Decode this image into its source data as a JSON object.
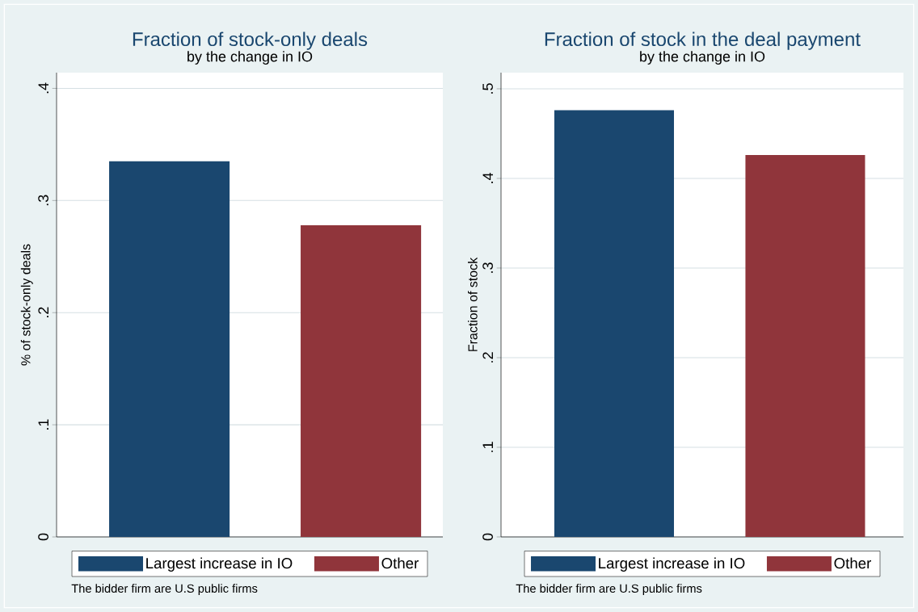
{
  "chart_data": [
    {
      "type": "bar",
      "title": "Fraction of stock-only deals",
      "subtitle": "by the change in IO",
      "ylabel": "% of stock-only deals",
      "categories": [
        null
      ],
      "series": [
        {
          "name": "Largest increase in IO",
          "color": "#1a476f",
          "values": [
            0.335
          ]
        },
        {
          "name": "Other",
          "color": "#90353b",
          "values": [
            0.278
          ]
        }
      ],
      "ylim": [
        0,
        0.414
      ],
      "yticks": [
        0,
        {
          "value": 0.1,
          "label": ".1"
        },
        {
          "value": 0.2,
          "label": ".2"
        },
        {
          "value": 0.3,
          "label": ".3"
        },
        {
          "value": 0.4,
          "label": ".4"
        }
      ],
      "grid": "y",
      "legend": "bottom",
      "annotations": [
        "The bidder firm are U.S public firms"
      ]
    },
    {
      "type": "bar",
      "title": "Fraction of stock in the deal payment",
      "subtitle": "by the change in IO",
      "ylabel": "Fraction of stock",
      "categories": [
        null
      ],
      "series": [
        {
          "name": "Largest increase in IO",
          "color": "#1a476f",
          "values": [
            0.476
          ]
        },
        {
          "name": "Other",
          "color": "#90353b",
          "values": [
            0.426
          ]
        }
      ],
      "ylim": [
        0,
        0.518
      ],
      "yticks": [
        0,
        {
          "value": 0.1,
          "label": ".1"
        },
        {
          "value": 0.2,
          "label": ".2"
        },
        {
          "value": 0.3,
          "label": ".3"
        },
        {
          "value": 0.4,
          "label": ".4"
        },
        {
          "value": 0.5,
          "label": ".5"
        }
      ],
      "grid": "y",
      "legend": "bottom",
      "annotations": [
        "The bidder firm are U.S public firms"
      ]
    }
  ]
}
